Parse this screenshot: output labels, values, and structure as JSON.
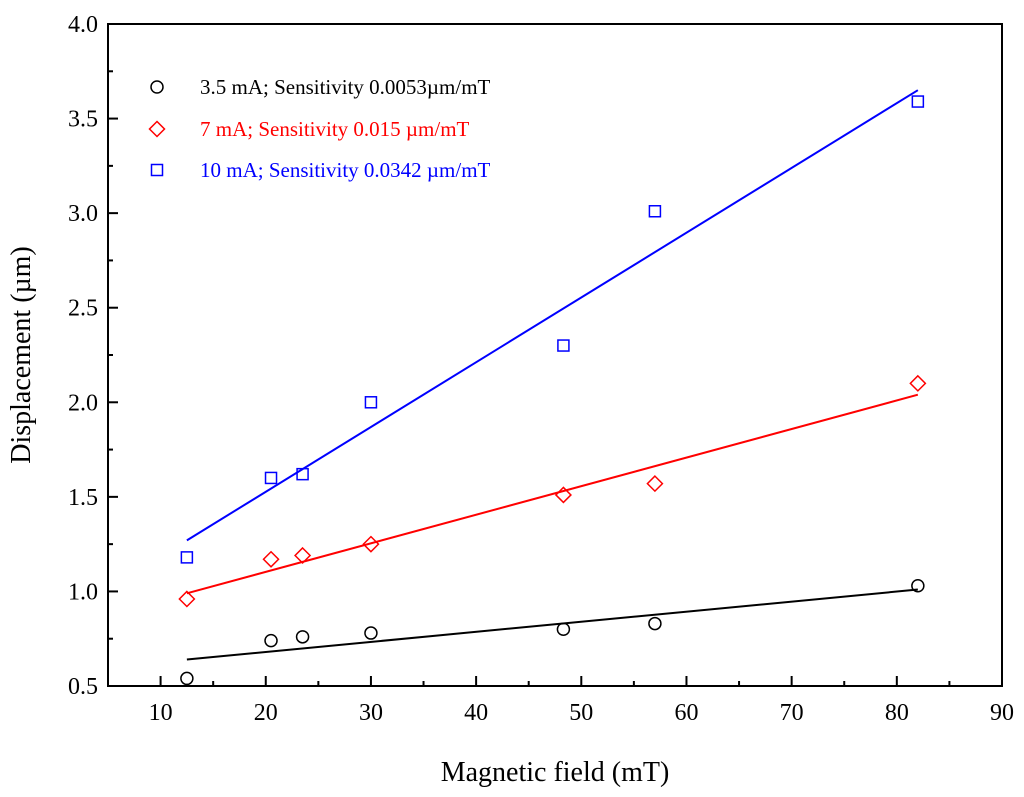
{
  "chart_data": {
    "type": "scatter",
    "title": "",
    "xlabel": "Magnetic field (mT)",
    "ylabel": "Displacement (µm)",
    "xlim": [
      5,
      90
    ],
    "ylim": [
      0.5,
      4.0
    ],
    "xticks": [
      10,
      20,
      30,
      40,
      50,
      60,
      70,
      80,
      90
    ],
    "yticks": [
      0.5,
      1.0,
      1.5,
      2.0,
      2.5,
      3.0,
      3.5,
      4.0
    ],
    "xtick_labels": [
      "10",
      "20",
      "30",
      "40",
      "50",
      "60",
      "70",
      "80",
      "90"
    ],
    "ytick_labels": [
      "0.5",
      "1.0",
      "1.5",
      "2.0",
      "2.5",
      "3.0",
      "3.5",
      "4.0"
    ],
    "grid": false,
    "legend_position": "top-left",
    "series": [
      {
        "name": "3.5 mA; Sensitivity 0.0053µm/mT",
        "marker": "circle",
        "color": "#000000",
        "x": [
          12.5,
          20.5,
          23.5,
          30,
          48.3,
          57,
          82
        ],
        "y": [
          0.54,
          0.74,
          0.76,
          0.78,
          0.8,
          0.83,
          1.03
        ],
        "fit": {
          "x": [
            12.5,
            82
          ],
          "y": [
            0.64,
            1.01
          ]
        }
      },
      {
        "name": "7 mA; Sensitivity 0.015 µm/mT",
        "marker": "diamond",
        "color": "#ff0000",
        "x": [
          12.5,
          20.5,
          23.5,
          30,
          48.3,
          57,
          82
        ],
        "y": [
          0.96,
          1.17,
          1.19,
          1.25,
          1.51,
          1.57,
          2.1
        ],
        "fit": {
          "x": [
            12.5,
            82
          ],
          "y": [
            0.99,
            2.04
          ]
        }
      },
      {
        "name": "10 mA; Sensitivity 0.0342 µm/mT",
        "marker": "square",
        "color": "#0000ff",
        "x": [
          12.5,
          20.5,
          23.5,
          30,
          48.3,
          57,
          82
        ],
        "y": [
          1.18,
          1.6,
          1.62,
          2.0,
          2.3,
          3.01,
          3.59
        ],
        "fit": {
          "x": [
            12.5,
            82
          ],
          "y": [
            1.27,
            3.65
          ]
        }
      }
    ]
  }
}
